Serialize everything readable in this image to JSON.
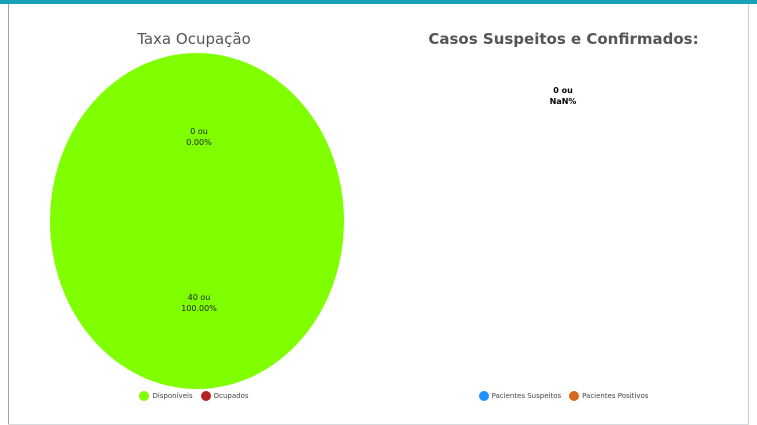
{
  "chart_data": [
    {
      "type": "pie",
      "title": "Taxa Ocupação",
      "categories": [
        "Disponíveis",
        "Ocupados"
      ],
      "values": [
        40,
        0
      ],
      "labels": [
        {
          "category": "Ocupados",
          "line1": "0 ou",
          "line2": "0.00%"
        },
        {
          "category": "Disponíveis",
          "line1": "40 ou",
          "line2": "100.00%"
        }
      ],
      "colors": [
        "#7fff00",
        "#b22222"
      ],
      "legend_position": "bottom"
    },
    {
      "type": "pie",
      "title": "Casos Suspeitos e Confirmados:",
      "categories": [
        "Pacientes Suspeitos",
        "Pacientes Positivos"
      ],
      "values": [
        0,
        0
      ],
      "labels": [
        {
          "category": "Pacientes Suspeitos",
          "line1": "0 ou",
          "line2": "NaN%"
        }
      ],
      "colors": [
        "#1e90ff",
        "#d2691e"
      ],
      "legend_position": "bottom"
    }
  ]
}
